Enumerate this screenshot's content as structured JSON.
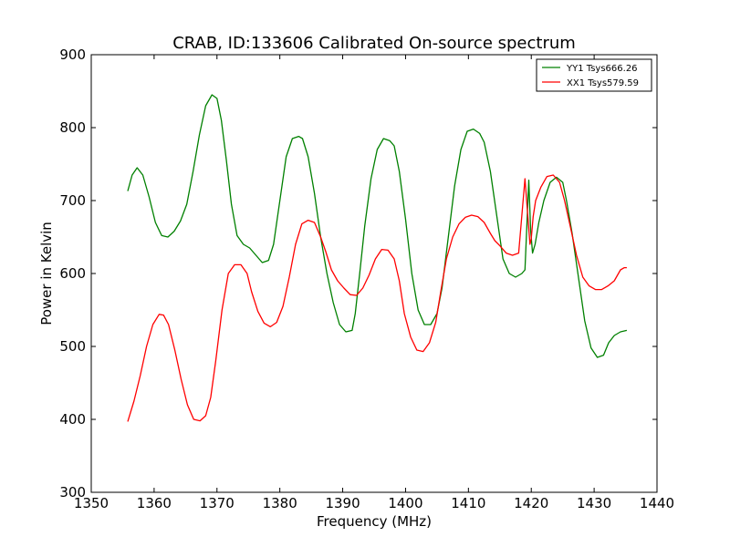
{
  "chart_data": {
    "type": "line",
    "title": "CRAB, ID:133606 Calibrated On-source spectrum",
    "xlabel": "Frequency (MHz)",
    "ylabel": "Power in Kelvin",
    "xlim": [
      1350,
      1440
    ],
    "ylim": [
      300,
      900
    ],
    "xticks": [
      1350,
      1360,
      1370,
      1380,
      1390,
      1400,
      1410,
      1420,
      1430,
      1440
    ],
    "yticks": [
      300,
      400,
      500,
      600,
      700,
      800,
      900
    ],
    "grid": false,
    "legend_position": "top-right",
    "series": [
      {
        "name": "YY1 Tsys666.26",
        "color": "#008000",
        "x": [
          1355.8,
          1356.5,
          1357.3,
          1358.2,
          1359.2,
          1360.2,
          1361.2,
          1362.2,
          1363.2,
          1364.2,
          1365.2,
          1366.2,
          1367.2,
          1368.2,
          1369.2,
          1370.0,
          1370.7,
          1371.5,
          1372.3,
          1373.2,
          1374.2,
          1375.2,
          1376.2,
          1377.2,
          1378.2,
          1379.0,
          1380.0,
          1381.0,
          1382.0,
          1383.0,
          1383.6,
          1384.5,
          1385.5,
          1386.5,
          1387.5,
          1388.5,
          1389.5,
          1390.5,
          1391.5,
          1392.0,
          1392.7,
          1393.5,
          1394.5,
          1395.5,
          1396.5,
          1397.5,
          1398.2,
          1399.0,
          1400.0,
          1401.0,
          1402.0,
          1403.0,
          1404.0,
          1405.0,
          1405.8,
          1406.8,
          1407.8,
          1408.8,
          1409.8,
          1410.8,
          1411.8,
          1412.5,
          1413.5,
          1414.5,
          1415.5,
          1416.5,
          1417.5,
          1418.5,
          1419.0,
          1419.6,
          1419.9,
          1420.2,
          1420.6,
          1421.2,
          1422.0,
          1423.0,
          1424.0,
          1425.0,
          1425.6,
          1426.5,
          1427.5,
          1428.5,
          1429.5,
          1430.5,
          1431.5,
          1432.3,
          1433.2,
          1434.2,
          1435.2
        ],
        "y": [
          713,
          735,
          745,
          735,
          705,
          670,
          652,
          650,
          658,
          672,
          695,
          740,
          790,
          830,
          845,
          840,
          810,
          755,
          695,
          652,
          640,
          635,
          625,
          615,
          618,
          640,
          700,
          760,
          785,
          788,
          785,
          760,
          710,
          650,
          600,
          560,
          530,
          520,
          522,
          545,
          600,
          665,
          730,
          770,
          785,
          782,
          775,
          740,
          675,
          600,
          550,
          530,
          530,
          545,
          580,
          650,
          720,
          770,
          795,
          798,
          792,
          780,
          740,
          680,
          620,
          600,
          595,
          600,
          605,
          728,
          660,
          628,
          640,
          670,
          700,
          725,
          732,
          725,
          700,
          655,
          595,
          535,
          498,
          485,
          488,
          505,
          515,
          520,
          522
        ]
      },
      {
        "name": "XX1 Tsys579.59",
        "color": "#ff0000",
        "x": [
          1355.8,
          1356.8,
          1357.8,
          1358.8,
          1359.8,
          1360.8,
          1361.5,
          1362.3,
          1363.3,
          1364.3,
          1365.3,
          1366.3,
          1367.3,
          1368.2,
          1369.0,
          1369.8,
          1370.8,
          1371.8,
          1372.8,
          1373.8,
          1374.8,
          1375.5,
          1376.5,
          1377.5,
          1378.5,
          1379.5,
          1380.5,
          1381.5,
          1382.5,
          1383.5,
          1384.5,
          1385.5,
          1386.5,
          1387.3,
          1388.2,
          1389.2,
          1390.2,
          1391.2,
          1392.2,
          1393.2,
          1394.2,
          1395.2,
          1396.2,
          1397.2,
          1398.2,
          1399.0,
          1399.8,
          1400.8,
          1401.8,
          1402.8,
          1403.8,
          1404.8,
          1405.6,
          1406.5,
          1407.5,
          1408.5,
          1409.5,
          1410.5,
          1411.5,
          1412.5,
          1413.5,
          1414.2,
          1415.0,
          1416.0,
          1417.0,
          1418.0,
          1419.0,
          1419.8,
          1420.0,
          1420.3,
          1420.7,
          1421.5,
          1422.5,
          1423.5,
          1424.5,
          1425.3,
          1426.2,
          1427.2,
          1428.2,
          1429.2,
          1430.2,
          1431.2,
          1432.2,
          1433.2,
          1434.2,
          1434.8,
          1435.2
        ],
        "y": [
          397,
          425,
          460,
          500,
          530,
          544,
          543,
          530,
          495,
          455,
          420,
          400,
          398,
          405,
          430,
          480,
          550,
          600,
          612,
          612,
          600,
          575,
          548,
          532,
          527,
          533,
          555,
          595,
          640,
          668,
          673,
          670,
          650,
          630,
          605,
          590,
          580,
          571,
          570,
          580,
          598,
          620,
          633,
          632,
          620,
          590,
          545,
          513,
          495,
          493,
          505,
          533,
          575,
          620,
          650,
          668,
          677,
          680,
          678,
          670,
          655,
          645,
          638,
          628,
          625,
          628,
          730,
          640,
          648,
          678,
          700,
          718,
          733,
          735,
          725,
          700,
          665,
          625,
          595,
          583,
          578,
          578,
          583,
          590,
          605,
          608,
          608
        ]
      }
    ]
  }
}
